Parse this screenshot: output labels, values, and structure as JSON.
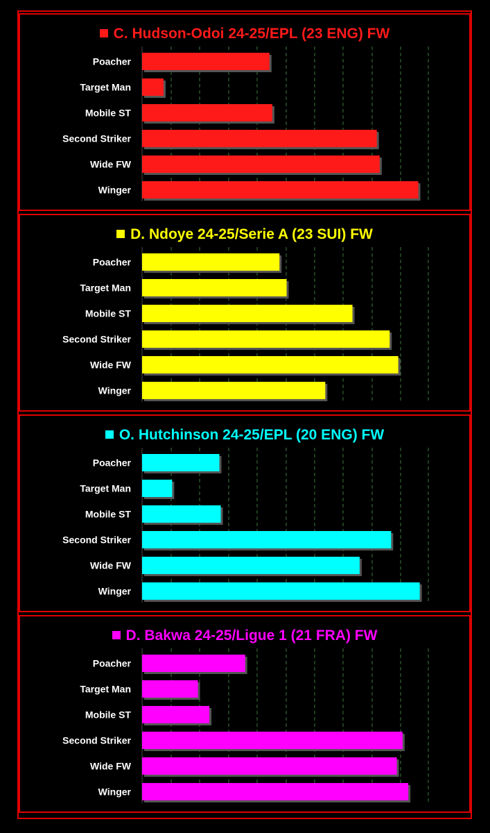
{
  "chart_data": [
    {
      "type": "bar",
      "orientation": "horizontal",
      "title": "C. Hudson-Odoi 24-25/EPL (23 ENG) FW",
      "color": "#ff1a1a",
      "categories": [
        "Poacher",
        "Target Man",
        "Mobile ST",
        "Second Striker",
        "Wide FW",
        "Winger"
      ],
      "values": [
        44.5,
        7.5,
        45.5,
        82.0,
        83.0,
        96.5
      ],
      "xlim": [
        0,
        100
      ],
      "grid": true
    },
    {
      "type": "bar",
      "orientation": "horizontal",
      "title": "D. Ndoye 24-25/Serie A (23 SUI) FW",
      "color": "#ffff00",
      "categories": [
        "Poacher",
        "Target Man",
        "Mobile ST",
        "Second Striker",
        "Wide FW",
        "Winger"
      ],
      "values": [
        48.0,
        50.5,
        73.5,
        86.5,
        89.5,
        64.0
      ],
      "xlim": [
        0,
        100
      ],
      "grid": true
    },
    {
      "type": "bar",
      "orientation": "horizontal",
      "title": "O. Hutchinson 24-25/EPL (20 ENG) FW",
      "color": "#00ffff",
      "categories": [
        "Poacher",
        "Target Man",
        "Mobile ST",
        "Second Striker",
        "Wide FW",
        "Winger"
      ],
      "values": [
        27.0,
        10.5,
        27.5,
        87.0,
        76.0,
        97.0
      ],
      "xlim": [
        0,
        100
      ],
      "grid": true
    },
    {
      "type": "bar",
      "orientation": "horizontal",
      "title": "D. Bakwa 24-25/Ligue 1 (21 FRA) FW",
      "color": "#ff00ff",
      "categories": [
        "Poacher",
        "Target Man",
        "Mobile ST",
        "Second Striker",
        "Wide FW",
        "Winger"
      ],
      "values": [
        36.0,
        19.5,
        23.5,
        91.0,
        89.0,
        93.0
      ],
      "xlim": [
        0,
        100
      ],
      "grid": true
    }
  ]
}
